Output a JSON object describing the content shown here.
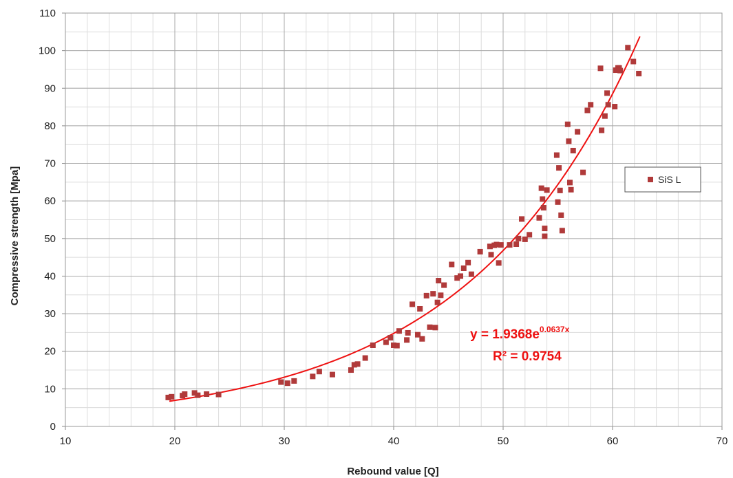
{
  "chart_data": {
    "type": "scatter",
    "xlabel": "Rebound value [Q]",
    "ylabel": "Compressive strength [Mpa]",
    "xlim": [
      10,
      70
    ],
    "ylim": [
      0,
      110
    ],
    "x_major_step": 10,
    "x_minor_step": 2,
    "y_major_step": 10,
    "y_minor_step": 5,
    "grid": true,
    "legend_position": "right",
    "colors": {
      "points": "#b03a3a",
      "trendline": "#ee1111"
    },
    "trendline": {
      "type": "exponential",
      "a": 1.9368,
      "b": 0.0637,
      "x_range": [
        19.5,
        62.5
      ],
      "equation_main": "y = 1.9368e",
      "equation_exponent": "0.0637x",
      "r_squared_label": "R² = 0.9754"
    },
    "series": [
      {
        "name": "SiS L",
        "points": [
          [
            19.4,
            7.7
          ],
          [
            19.7,
            7.9
          ],
          [
            20.7,
            8.2
          ],
          [
            20.9,
            8.6
          ],
          [
            21.8,
            8.9
          ],
          [
            22.1,
            8.3
          ],
          [
            22.9,
            8.6
          ],
          [
            24.0,
            8.5
          ],
          [
            29.7,
            11.8
          ],
          [
            30.3,
            11.5
          ],
          [
            30.9,
            12.1
          ],
          [
            32.6,
            13.3
          ],
          [
            33.2,
            14.6
          ],
          [
            34.4,
            13.8
          ],
          [
            36.1,
            15.0
          ],
          [
            36.4,
            16.4
          ],
          [
            36.7,
            16.6
          ],
          [
            37.4,
            18.2
          ],
          [
            38.1,
            21.6
          ],
          [
            39.3,
            22.4
          ],
          [
            39.7,
            23.6
          ],
          [
            40.0,
            21.6
          ],
          [
            40.3,
            21.5
          ],
          [
            40.5,
            25.4
          ],
          [
            41.2,
            23.0
          ],
          [
            41.3,
            24.9
          ],
          [
            41.7,
            32.5
          ],
          [
            42.2,
            24.4
          ],
          [
            42.4,
            31.3
          ],
          [
            42.6,
            23.3
          ],
          [
            43.0,
            34.8
          ],
          [
            43.3,
            26.4
          ],
          [
            43.6,
            35.3
          ],
          [
            43.8,
            26.3
          ],
          [
            44.0,
            33.0
          ],
          [
            44.1,
            38.8
          ],
          [
            44.3,
            34.9
          ],
          [
            44.6,
            37.6
          ],
          [
            45.3,
            43.1
          ],
          [
            45.8,
            39.5
          ],
          [
            46.1,
            40.0
          ],
          [
            46.4,
            42.1
          ],
          [
            46.8,
            43.6
          ],
          [
            47.1,
            40.5
          ],
          [
            47.9,
            46.5
          ],
          [
            48.8,
            47.9
          ],
          [
            48.9,
            45.7
          ],
          [
            49.2,
            48.2
          ],
          [
            49.4,
            48.4
          ],
          [
            49.6,
            43.5
          ],
          [
            49.8,
            48.3
          ],
          [
            50.6,
            48.3
          ],
          [
            51.2,
            48.5
          ],
          [
            51.4,
            50.0
          ],
          [
            51.7,
            55.2
          ],
          [
            52.0,
            49.8
          ],
          [
            52.4,
            51.0
          ],
          [
            53.3,
            55.5
          ],
          [
            53.5,
            63.4
          ],
          [
            53.6,
            60.5
          ],
          [
            53.7,
            58.2
          ],
          [
            53.8,
            52.7
          ],
          [
            53.8,
            50.6
          ],
          [
            54.0,
            62.9
          ],
          [
            54.9,
            72.2
          ],
          [
            55.0,
            59.7
          ],
          [
            55.1,
            68.8
          ],
          [
            55.2,
            62.8
          ],
          [
            55.3,
            56.2
          ],
          [
            55.4,
            52.1
          ],
          [
            55.9,
            80.4
          ],
          [
            56.0,
            75.9
          ],
          [
            56.1,
            64.9
          ],
          [
            56.2,
            63.0
          ],
          [
            56.4,
            73.4
          ],
          [
            56.8,
            78.4
          ],
          [
            57.3,
            67.6
          ],
          [
            57.7,
            84.1
          ],
          [
            58.0,
            85.6
          ],
          [
            58.9,
            95.3
          ],
          [
            59.0,
            78.8
          ],
          [
            59.3,
            82.6
          ],
          [
            59.5,
            88.7
          ],
          [
            59.6,
            85.6
          ],
          [
            60.2,
            85.1
          ],
          [
            60.3,
            94.8
          ],
          [
            60.5,
            95.4
          ],
          [
            60.6,
            95.4
          ],
          [
            60.7,
            94.7
          ],
          [
            61.4,
            100.8
          ],
          [
            61.9,
            97.1
          ],
          [
            62.4,
            93.9
          ]
        ]
      }
    ]
  }
}
